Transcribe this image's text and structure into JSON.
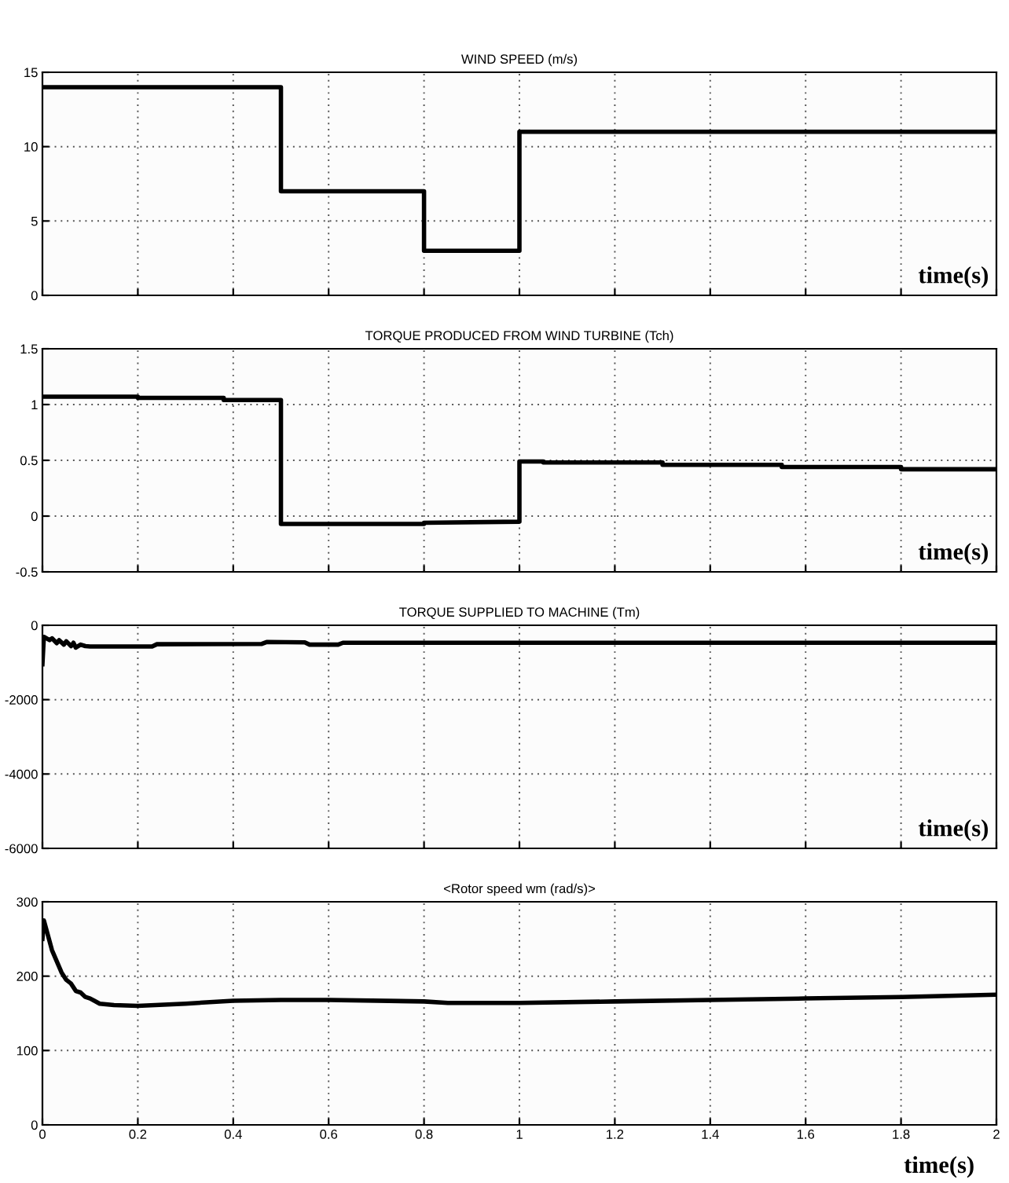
{
  "chart_data": [
    {
      "type": "line",
      "title": "WIND SPEED (m/s)",
      "xlabel": "time(s)",
      "x": [
        0,
        0.5,
        0.5,
        0.8,
        0.8,
        1.0,
        1.0,
        2.0
      ],
      "series": [
        {
          "color": "#000000",
          "values": [
            14,
            14,
            7,
            7,
            3,
            3,
            11,
            11
          ]
        }
      ],
      "xlim": [
        0,
        2
      ],
      "xticks": [
        0,
        0.2,
        0.4,
        0.6,
        0.8,
        1,
        1.2,
        1.4,
        1.6,
        1.8,
        2
      ],
      "ylim": [
        0,
        15
      ],
      "yticks": [
        0,
        5,
        10,
        15
      ],
      "grid": true,
      "tick_labels": "y"
    },
    {
      "type": "line",
      "title": "TORQUE PRODUCED FROM WIND TURBINE (Tch)",
      "xlabel": "time(s)",
      "x": [
        0,
        0.2,
        0.2,
        0.38,
        0.38,
        0.5,
        0.5,
        0.8,
        0.8,
        1.0,
        1.0,
        1.05,
        1.05,
        1.3,
        1.3,
        1.55,
        1.55,
        1.8,
        1.8,
        2.0
      ],
      "series": [
        {
          "color": "#000000",
          "values": [
            1.07,
            1.07,
            1.06,
            1.06,
            1.04,
            1.04,
            -0.07,
            -0.07,
            -0.06,
            -0.05,
            0.49,
            0.49,
            0.48,
            0.48,
            0.46,
            0.46,
            0.44,
            0.44,
            0.42,
            0.42
          ]
        }
      ],
      "xlim": [
        0,
        2
      ],
      "xticks": [
        0,
        0.2,
        0.4,
        0.6,
        0.8,
        1,
        1.2,
        1.4,
        1.6,
        1.8,
        2
      ],
      "ylim": [
        -0.5,
        1.5
      ],
      "yticks": [
        -0.5,
        0,
        0.5,
        1,
        1.5
      ],
      "grid": true,
      "tick_labels": "y"
    },
    {
      "type": "line",
      "title": "TORQUE SUPPLIED TO MACHINE (Tm)",
      "xlabel": "time(s)",
      "x": [
        0,
        0.003,
        0.015,
        0.02,
        0.03,
        0.035,
        0.045,
        0.05,
        0.06,
        0.065,
        0.07,
        0.08,
        0.09,
        0.1,
        0.23,
        0.24,
        0.46,
        0.47,
        0.55,
        0.56,
        0.62,
        0.63,
        2.0
      ],
      "series": [
        {
          "color": "#000000",
          "values": [
            -1050,
            -310,
            -400,
            -350,
            -480,
            -400,
            -520,
            -430,
            -560,
            -470,
            -600,
            -520,
            -560,
            -570,
            -570,
            -510,
            -500,
            -450,
            -460,
            -520,
            -520,
            -470,
            -470
          ]
        }
      ],
      "xlim": [
        0,
        2
      ],
      "xticks": [
        0,
        0.2,
        0.4,
        0.6,
        0.8,
        1,
        1.2,
        1.4,
        1.6,
        1.8,
        2
      ],
      "ylim": [
        -6000,
        0
      ],
      "yticks": [
        -6000,
        -4000,
        -2000,
        0
      ],
      "grid": true,
      "tick_labels": "y"
    },
    {
      "type": "line",
      "title": "<Rotor speed wm (rad/s)>",
      "xlabel": "time(s)",
      "x": [
        0,
        0.003,
        0.02,
        0.04,
        0.05,
        0.06,
        0.07,
        0.08,
        0.09,
        0.1,
        0.12,
        0.15,
        0.2,
        0.3,
        0.4,
        0.5,
        0.6,
        0.8,
        0.85,
        1.0,
        1.2,
        1.4,
        1.6,
        1.8,
        2.0
      ],
      "series": [
        {
          "color": "#000000",
          "values": [
            250,
            275,
            235,
            205,
            195,
            190,
            180,
            178,
            172,
            170,
            163,
            161,
            160,
            163,
            167,
            168,
            168,
            166,
            164,
            164,
            166,
            168,
            170,
            172,
            175
          ]
        }
      ],
      "xlim": [
        0,
        2
      ],
      "xticks": [
        0,
        0.2,
        0.4,
        0.6,
        0.8,
        1,
        1.2,
        1.4,
        1.6,
        1.8,
        2
      ],
      "ylim": [
        0,
        300
      ],
      "yticks": [
        0,
        100,
        200,
        300
      ],
      "grid": true
    }
  ]
}
